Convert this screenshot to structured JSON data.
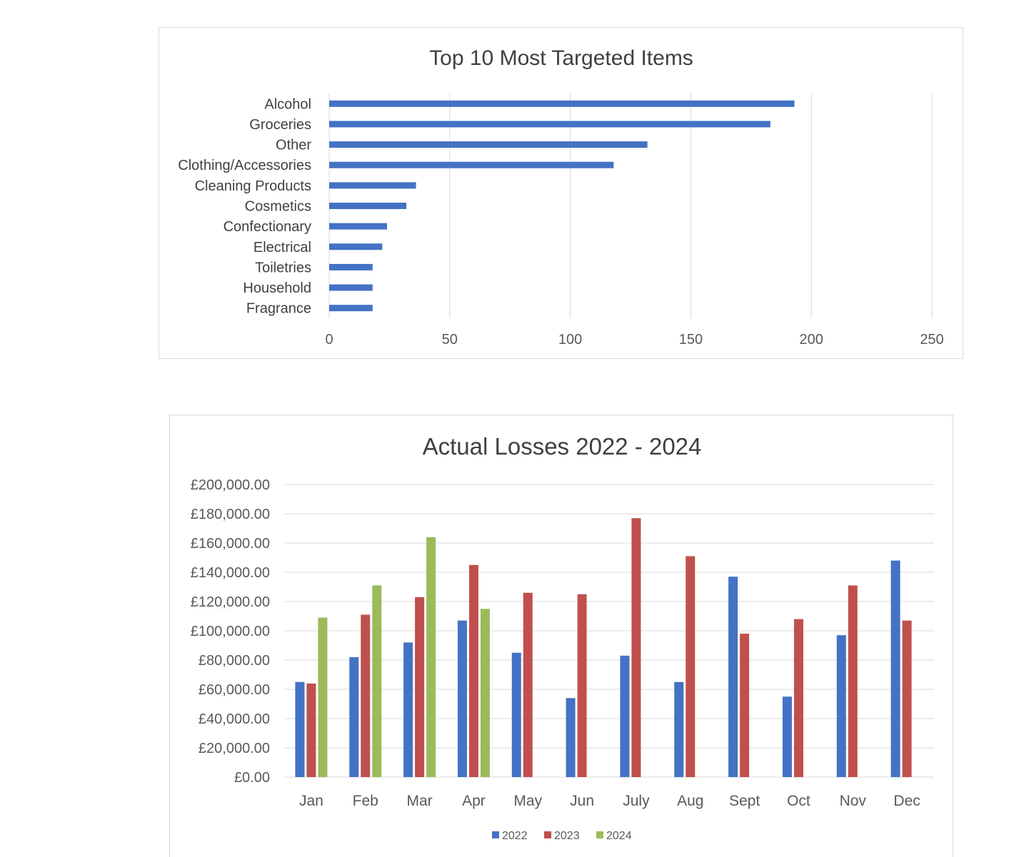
{
  "chart_data": [
    {
      "type": "bar",
      "orientation": "horizontal",
      "title": "Top 10 Most Targeted Items",
      "categories": [
        "Alcohol",
        "Groceries",
        "Other",
        "Clothing/Accessories",
        "Cleaning Products",
        "Cosmetics",
        "Confectionary",
        "Electrical",
        "Toiletries",
        "Household",
        "Fragrance"
      ],
      "values": [
        193,
        183,
        132,
        118,
        36,
        32,
        24,
        22,
        18,
        18,
        18
      ],
      "xlim": [
        0,
        250
      ],
      "xticks": [
        "0",
        "50",
        "100",
        "150",
        "200",
        "250"
      ],
      "grid": true,
      "color": "#4472c4"
    },
    {
      "type": "bar",
      "title": "Actual Losses 2022 - 2024",
      "categories": [
        "Jan",
        "Feb",
        "Mar",
        "Apr",
        "May",
        "Jun",
        "July",
        "Aug",
        "Sept",
        "Oct",
        "Nov",
        "Dec"
      ],
      "series": [
        {
          "name": "2022",
          "color": "#4472c4",
          "values": [
            65000,
            82000,
            92000,
            107000,
            85000,
            54000,
            83000,
            65000,
            137000,
            55000,
            97000,
            148000
          ]
        },
        {
          "name": "2023",
          "color": "#c0504d",
          "values": [
            64000,
            111000,
            123000,
            145000,
            126000,
            125000,
            177000,
            151000,
            98000,
            108000,
            131000,
            107000
          ]
        },
        {
          "name": "2024",
          "color": "#9bbb59",
          "values": [
            109000,
            131000,
            164000,
            115000,
            null,
            null,
            null,
            null,
            null,
            null,
            null,
            null
          ]
        }
      ],
      "ylim": [
        0,
        200000
      ],
      "yticks": [
        "£200,000.00",
        "£180,000.00",
        "£160,000.00",
        "£140,000.00",
        "£120,000.00",
        "£100,000.00",
        "£80,000.00",
        "£60,000.00",
        "£40,000.00",
        "£20,000.00",
        "£0.00"
      ],
      "grid": true,
      "legend": "bottom"
    }
  ]
}
